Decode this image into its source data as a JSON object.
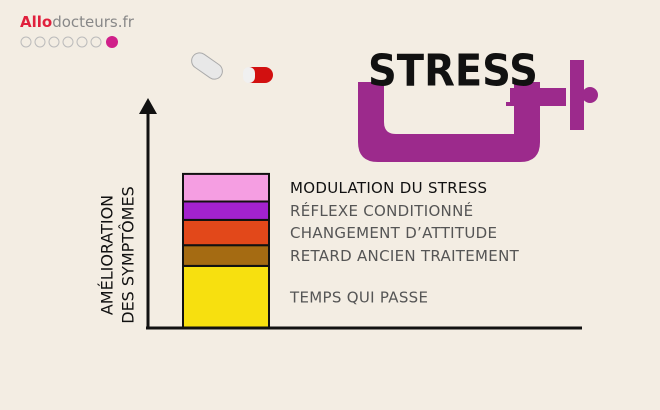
{
  "logo": {
    "brand": "Allo",
    "rest": "docteurs.fr"
  },
  "illustration_text": "STRESS",
  "chart_data": {
    "type": "stacked-bar",
    "y_label": [
      "AMÉLIORATION",
      "DES SYMPTÔMES"
    ],
    "ylim": [
      0,
      100
    ],
    "series": [
      {
        "name": "TEMPS QUI PASSE",
        "color": "#f7e00f",
        "values": [
          27
        ]
      },
      {
        "name": "RETARD ANCIEN TRAITEMENT",
        "color": "#a56b12",
        "values": [
          9
        ]
      },
      {
        "name": "CHANGEMENT D’ATTITUDE",
        "color": "#e2481a",
        "values": [
          11
        ]
      },
      {
        "name": "RÉFLEXE CONDITIONNÉ",
        "color": "#a322cf",
        "values": [
          8
        ]
      },
      {
        "name": "MODULATION DU STRESS",
        "color": "#f59ee2",
        "values": [
          12
        ]
      }
    ]
  }
}
